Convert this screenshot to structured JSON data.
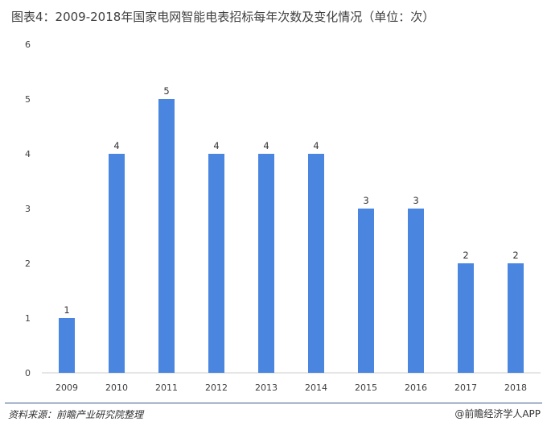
{
  "title": "图表4：2009-2018年国家电网智能电表招标每年次数及变化情况（单位：次）",
  "source": "资料来源：前瞻产业研究院整理",
  "brand": "@前瞻经济学人APP",
  "colors": {
    "bar": "#4a86e0",
    "axis": "#cccccc",
    "rule": "#3b5a8c"
  },
  "chart_data": {
    "type": "bar",
    "categories": [
      "2009",
      "2010",
      "2011",
      "2012",
      "2013",
      "2014",
      "2015",
      "2016",
      "2017",
      "2018"
    ],
    "values": [
      1,
      4,
      5,
      4,
      4,
      4,
      3,
      3,
      2,
      2
    ],
    "title": "图表4：2009-2018年国家电网智能电表招标每年次数及变化情况（单位：次）",
    "xlabel": "",
    "ylabel": "",
    "ylim": [
      0,
      6
    ],
    "yticks": [
      0,
      1,
      2,
      3,
      4,
      5,
      6
    ],
    "grid": false,
    "legend": "none",
    "data_labels": true
  }
}
